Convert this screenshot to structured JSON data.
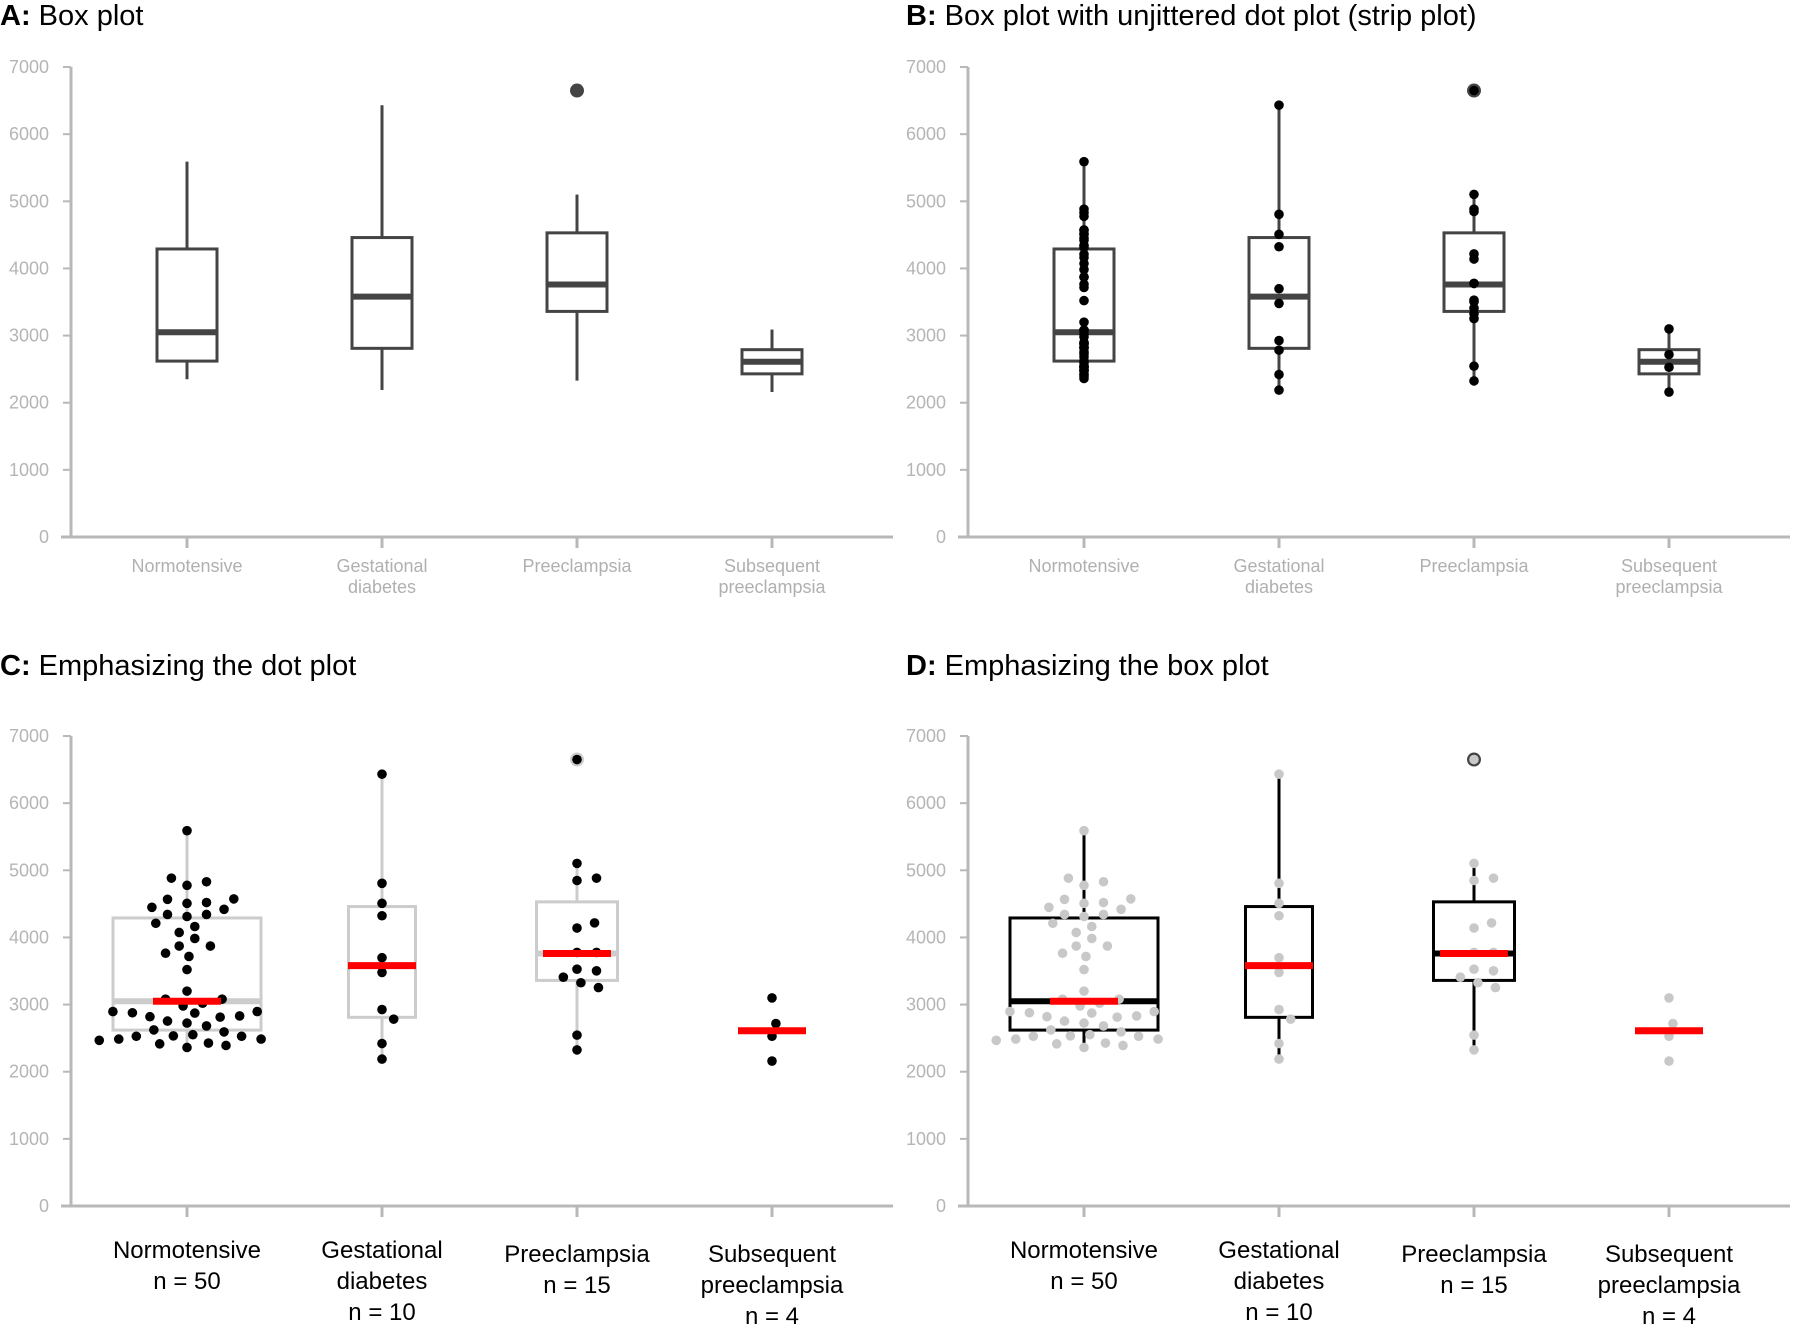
{
  "chart_data": [
    {
      "id": "A",
      "type": "box",
      "title_letter": "A:",
      "title": " Box plot",
      "style": "box"
    },
    {
      "id": "B",
      "type": "box",
      "title_letter": "B:",
      "title": " Box plot with unjittered dot plot (strip plot)",
      "style": "strip"
    },
    {
      "id": "C",
      "type": "box",
      "title_letter": "C:",
      "title": " Emphasizing the dot plot",
      "style": "dot"
    },
    {
      "id": "D",
      "type": "box",
      "title_letter": "D:",
      "title": " Emphasizing the box plot",
      "style": "boxemph"
    }
  ],
  "shared": {
    "ylim": [
      0,
      7000
    ],
    "yticks": [
      "0",
      "1000",
      "2000",
      "3000",
      "4000",
      "5000",
      "6000",
      "7000"
    ],
    "categories": [
      {
        "name": [
          "Normotensive"
        ],
        "n_label": "n = 50",
        "box": {
          "min": 2350,
          "q1": 2620,
          "median": 3050,
          "q3": 4290,
          "max": 5590
        },
        "outliers": [],
        "points": [
          [
            5590,
            0
          ],
          [
            4883,
            -0.08
          ],
          [
            4776,
            0
          ],
          [
            4829,
            0.1
          ],
          [
            4568,
            -0.1
          ],
          [
            4508,
            0
          ],
          [
            4520,
            0.1
          ],
          [
            4574,
            0.24
          ],
          [
            4449,
            -0.18
          ],
          [
            4342,
            -0.1
          ],
          [
            4312,
            0
          ],
          [
            4342,
            0.1
          ],
          [
            4419,
            0.19
          ],
          [
            4211,
            -0.16
          ],
          [
            4074,
            -0.04
          ],
          [
            4163,
            0.04
          ],
          [
            3985,
            0.04
          ],
          [
            3872,
            -0.04
          ],
          [
            3872,
            0.12
          ],
          [
            3765,
            -0.11
          ],
          [
            3717,
            0.01
          ],
          [
            3521,
            0
          ],
          [
            3200,
            0
          ],
          [
            3081,
            -0.11
          ],
          [
            3081,
            0.18
          ],
          [
            2980,
            -0.02
          ],
          [
            3021,
            0.08
          ],
          [
            2896,
            -0.38
          ],
          [
            2878,
            -0.28
          ],
          [
            2819,
            -0.19
          ],
          [
            2873,
            0.04
          ],
          [
            2813,
            0.17
          ],
          [
            2831,
            0.27
          ],
          [
            2896,
            0.36
          ],
          [
            2754,
            -0.1
          ],
          [
            2724,
            0
          ],
          [
            2682,
            0.1
          ],
          [
            2623,
            -0.17
          ],
          [
            2593,
            0.19
          ],
          [
            2528,
            -0.26
          ],
          [
            2534,
            -0.07
          ],
          [
            2551,
            0.03
          ],
          [
            2528,
            0.28
          ],
          [
            2468,
            -0.45
          ],
          [
            2486,
            -0.35
          ],
          [
            2486,
            0.38
          ],
          [
            2415,
            -0.14
          ],
          [
            2427,
            0.11
          ],
          [
            2391,
            0.2
          ],
          [
            2361,
            0
          ]
        ]
      },
      {
        "name": [
          "Gestational",
          "diabetes"
        ],
        "n_label": "n = 10",
        "box": {
          "min": 2190,
          "q1": 2810,
          "median": 3580,
          "q3": 4460,
          "max": 6430
        },
        "outliers": [],
        "points": [
          [
            6432,
            0
          ],
          [
            4806,
            0
          ],
          [
            4508,
            0
          ],
          [
            4323,
            0
          ],
          [
            3698,
            0
          ],
          [
            3479,
            0
          ],
          [
            2926,
            0
          ],
          [
            2783,
            0.06
          ],
          [
            2420,
            0
          ],
          [
            2188,
            0
          ]
        ]
      },
      {
        "name": [
          "Preeclampsia"
        ],
        "n_label": "n = 15",
        "box": {
          "min": 2330,
          "q1": 3360,
          "median": 3760,
          "q3": 4530,
          "max": 5100
        },
        "outliers": [
          6650
        ],
        "points": [
          [
            6650,
            0
          ],
          [
            5103,
            0
          ],
          [
            4848,
            0
          ],
          [
            4883,
            0.1
          ],
          [
            4217,
            0.09
          ],
          [
            4140,
            0
          ],
          [
            3777,
            0
          ],
          [
            3777,
            0.1
          ],
          [
            3527,
            0
          ],
          [
            3503,
            0.1
          ],
          [
            3408,
            -0.07
          ],
          [
            3325,
            0.02
          ],
          [
            3253,
            0.11
          ],
          [
            2545,
            0
          ],
          [
            2325,
            0
          ]
        ]
      },
      {
        "name": [
          "Subsequent",
          "preeclampsia"
        ],
        "n_label": "n = 4",
        "box": {
          "min": 2160,
          "q1": 2430,
          "median": 2610,
          "q3": 2790,
          "max": 3090
        },
        "outliers": [],
        "points": [
          [
            3099,
            0
          ],
          [
            2718,
            0.02
          ],
          [
            2528,
            0
          ],
          [
            2159,
            0
          ]
        ]
      }
    ]
  },
  "colors": {
    "box_dark": "#444444",
    "axis": "#b8b8b8",
    "median_red": "#ff0000",
    "box_light": "#cccccc",
    "dot_grey": "#c8c8c8",
    "dot_black": "#000000"
  }
}
